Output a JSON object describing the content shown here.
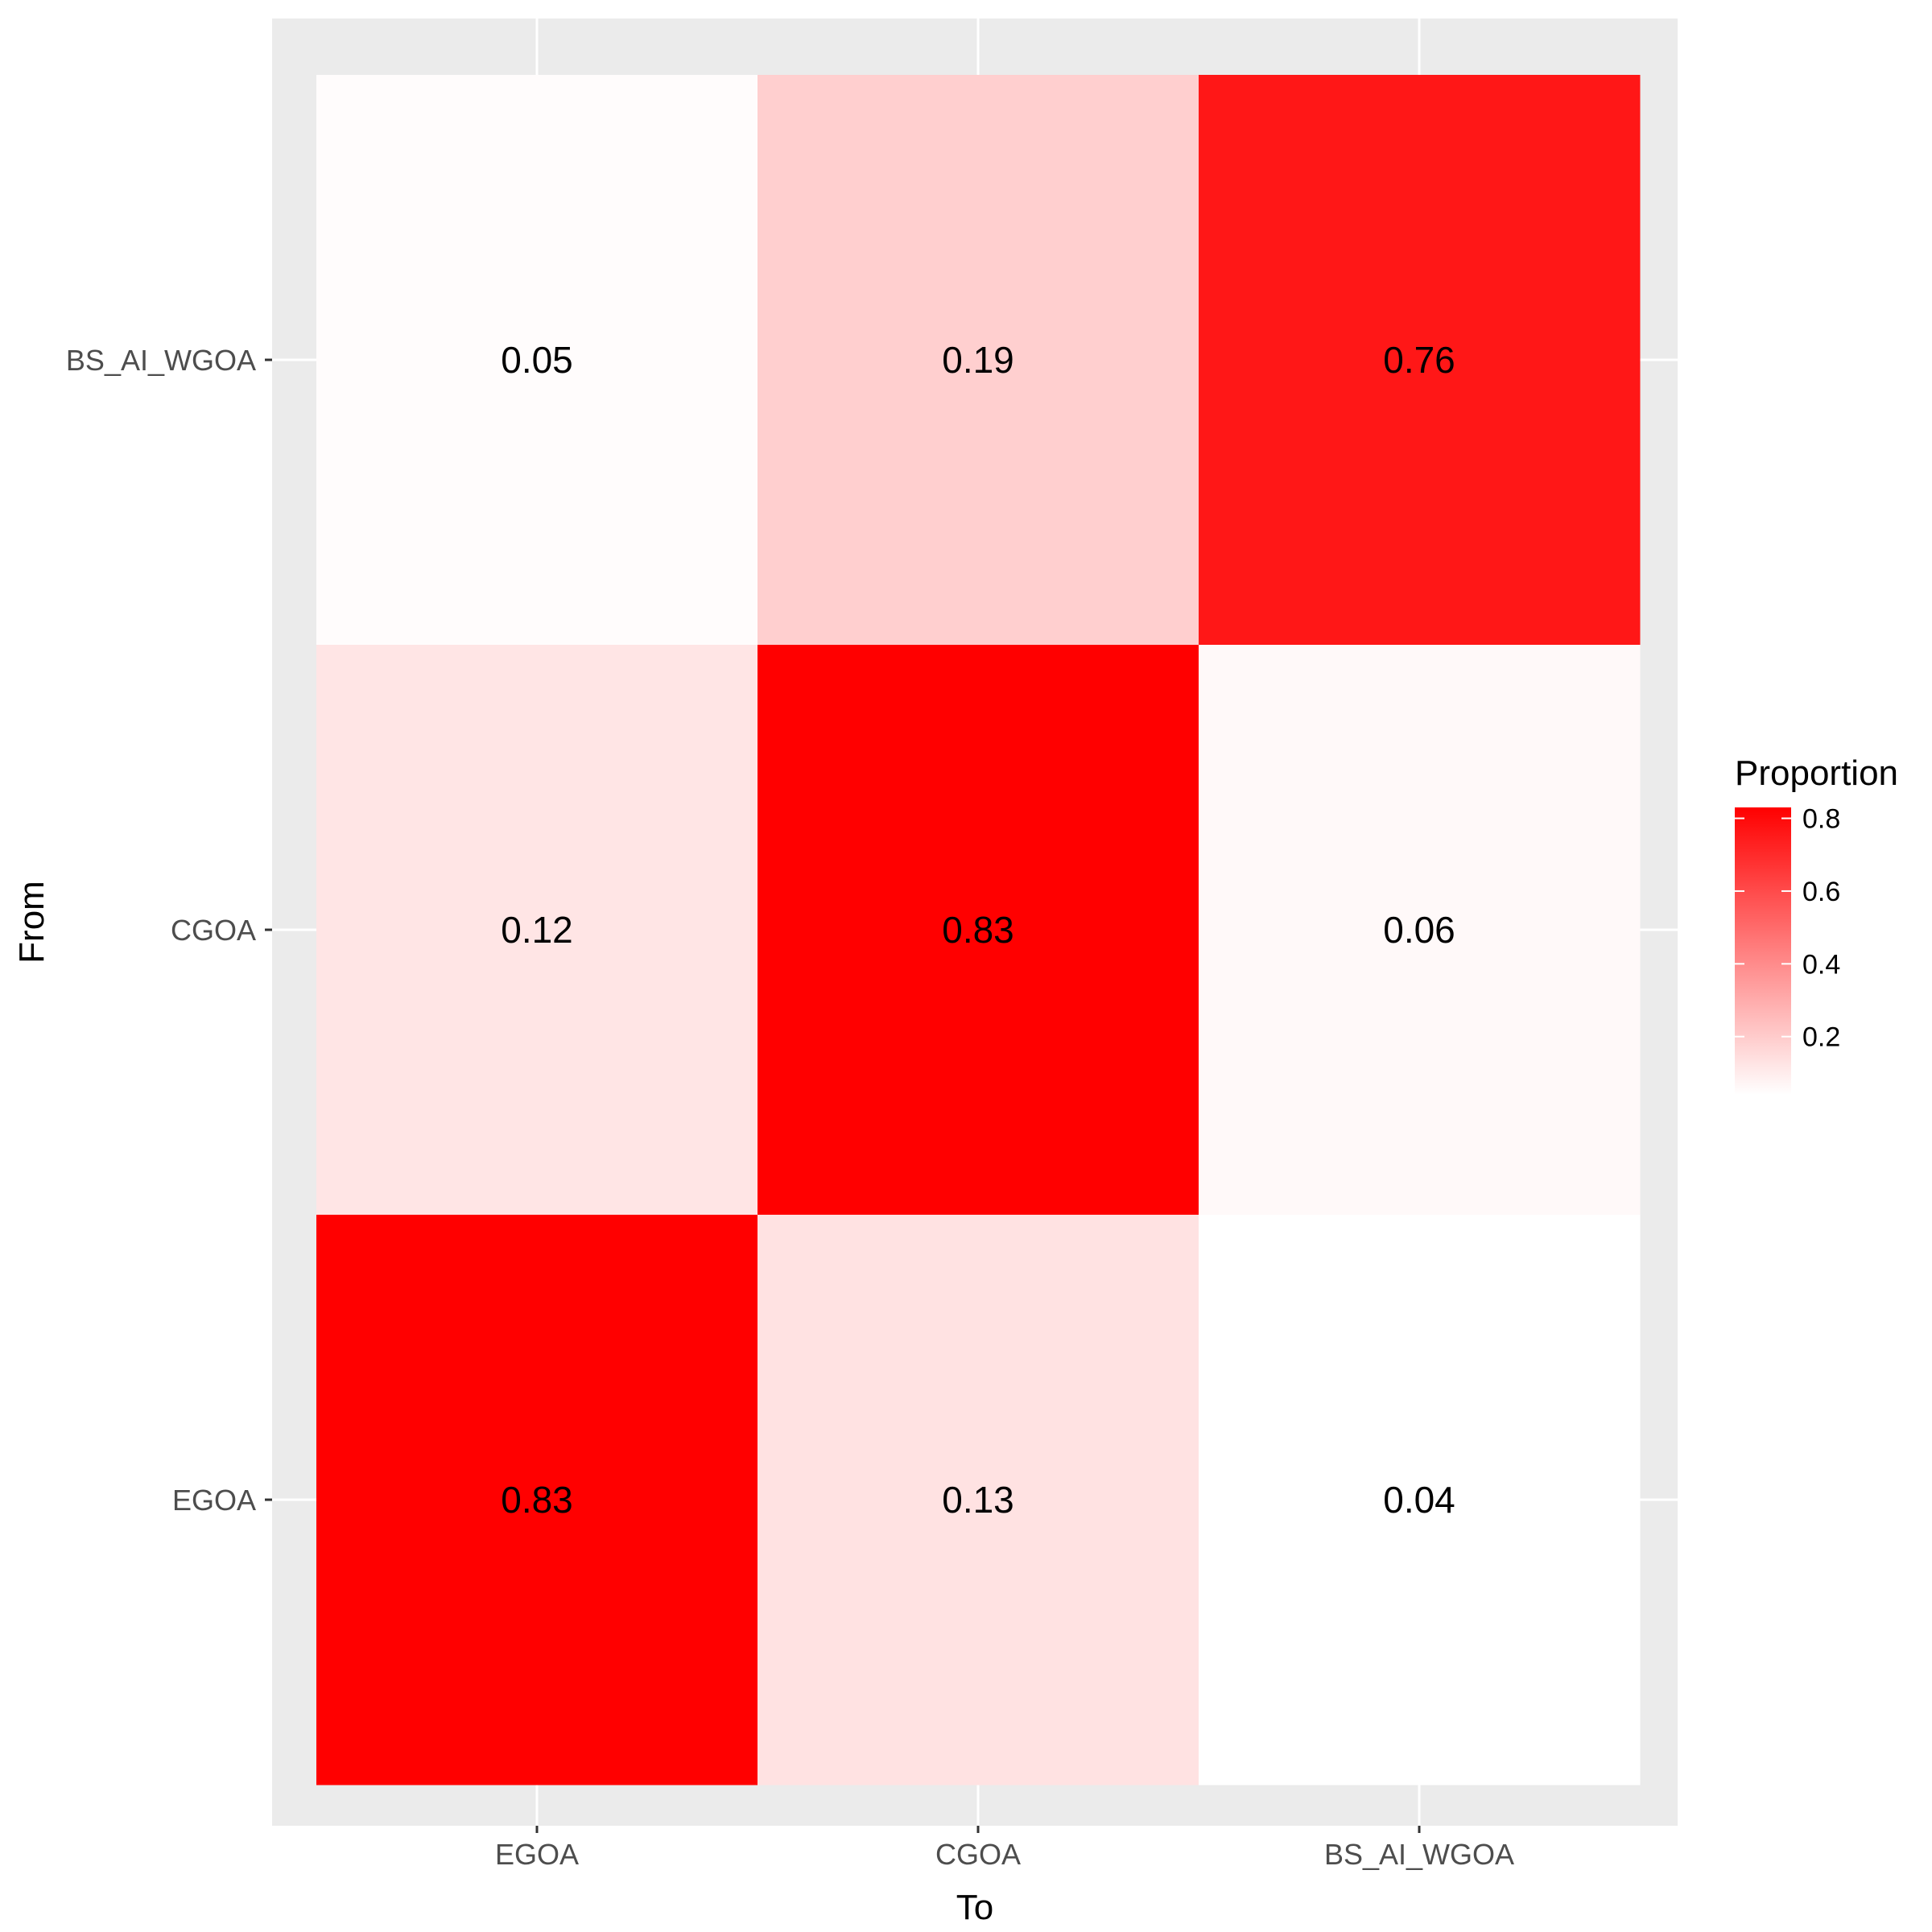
{
  "chart_data": {
    "type": "heatmap",
    "xlabel": "To",
    "ylabel": "From",
    "x_categories": [
      "EGOA",
      "CGOA",
      "BS_AI_WGOA"
    ],
    "y_categories": [
      "EGOA",
      "CGOA",
      "BS_AI_WGOA"
    ],
    "cells": [
      {
        "from": "BS_AI_WGOA",
        "to": "EGOA",
        "value": 0.05,
        "label": "0.05"
      },
      {
        "from": "BS_AI_WGOA",
        "to": "CGOA",
        "value": 0.19,
        "label": "0.19"
      },
      {
        "from": "BS_AI_WGOA",
        "to": "BS_AI_WGOA",
        "value": 0.76,
        "label": "0.76"
      },
      {
        "from": "CGOA",
        "to": "EGOA",
        "value": 0.12,
        "label": "0.12"
      },
      {
        "from": "CGOA",
        "to": "CGOA",
        "value": 0.83,
        "label": "0.83"
      },
      {
        "from": "CGOA",
        "to": "BS_AI_WGOA",
        "value": 0.06,
        "label": "0.06"
      },
      {
        "from": "EGOA",
        "to": "EGOA",
        "value": 0.83,
        "label": "0.83"
      },
      {
        "from": "EGOA",
        "to": "CGOA",
        "value": 0.13,
        "label": "0.13"
      },
      {
        "from": "EGOA",
        "to": "BS_AI_WGOA",
        "value": 0.04,
        "label": "0.04"
      }
    ],
    "legend": {
      "title": "Proportion",
      "placement": "right",
      "low_color": "#ffffff",
      "high_color": "#ff0000",
      "range": [
        0.04,
        0.83
      ],
      "ticks": [
        {
          "value": 0.8,
          "label": "0.8"
        },
        {
          "value": 0.6,
          "label": "0.6"
        },
        {
          "value": 0.4,
          "label": "0.4"
        },
        {
          "value": 0.2,
          "label": "0.2"
        }
      ]
    },
    "panel_background": "#ebebeb",
    "grid": true
  }
}
